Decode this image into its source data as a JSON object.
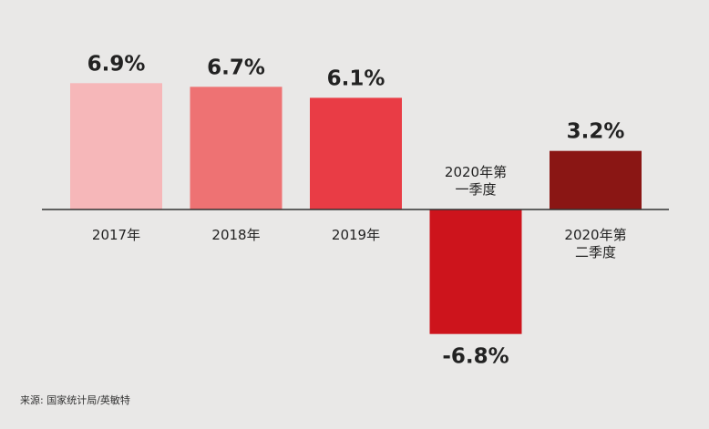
{
  "chart_data": {
    "type": "bar",
    "categories": [
      "2017年",
      "2018年",
      "2019年",
      "2020年第\n一季度",
      "2020年第\n二季度"
    ],
    "values": [
      6.9,
      6.7,
      6.1,
      -6.8,
      3.2
    ],
    "value_labels": [
      "6.9%",
      "6.7%",
      "6.1%",
      "-6.8%",
      "3.2%"
    ],
    "colors": [
      "#f6b7b9",
      "#ee7273",
      "#e93c45",
      "#cd141c",
      "#8a1614"
    ],
    "title": "",
    "xlabel": "",
    "ylabel": "",
    "ylim": [
      -7.0,
      7.6
    ],
    "grid": false,
    "legend": "none"
  },
  "source_note": "来源: 国家统计局/英敏特"
}
